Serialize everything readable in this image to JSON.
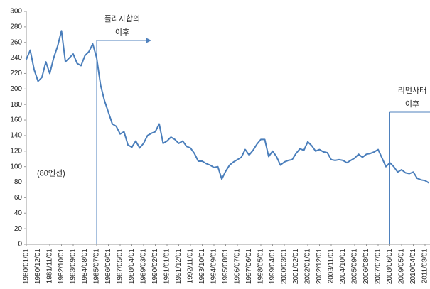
{
  "chart_data": {
    "type": "line",
    "categories": [
      "1980/01/01",
      null,
      null,
      "1980/12/01",
      null,
      null,
      "1981/11/01",
      null,
      null,
      "1982/10/01",
      null,
      null,
      "1983/09/01",
      null,
      null,
      "1984/08/01",
      null,
      null,
      "1985/07/01",
      null,
      null,
      "1986/06/01",
      null,
      null,
      "1987/05/01",
      null,
      null,
      "1988/04/01",
      null,
      null,
      "1989/03/01",
      null,
      null,
      "1990/02/01",
      null,
      null,
      "1991/01/01",
      null,
      null,
      "1991/12/01",
      null,
      null,
      "1992/11/01",
      null,
      null,
      "1993/10/01",
      null,
      null,
      "1994/09/01",
      null,
      null,
      "1995/08/01",
      null,
      null,
      "1996/07/01",
      null,
      null,
      "1997/06/01",
      null,
      null,
      "1998/05/01",
      null,
      null,
      "1999/04/01",
      null,
      null,
      "2000/03/01",
      null,
      null,
      "2001/02/01",
      null,
      null,
      "2002/01/01",
      null,
      null,
      "2002/12/01",
      null,
      null,
      "2003/11/01",
      null,
      null,
      "2004/10/01",
      null,
      null,
      "2005/09/01",
      null,
      null,
      "2006/08/01",
      null,
      null,
      "2007/07/01",
      null,
      null,
      "2008/06/01",
      null,
      null,
      "2009/05/01",
      null,
      null,
      "2010/04/01",
      null,
      null,
      "2011/03/01",
      null
    ],
    "values": [
      238,
      250,
      225,
      210,
      215,
      235,
      220,
      240,
      255,
      275,
      235,
      240,
      245,
      233,
      230,
      243,
      248,
      258,
      240,
      205,
      185,
      170,
      155,
      152,
      142,
      145,
      128,
      125,
      133,
      124,
      130,
      140,
      143,
      145,
      155,
      130,
      133,
      138,
      135,
      130,
      133,
      126,
      124,
      117,
      107,
      107,
      104,
      102,
      99,
      100,
      84,
      94,
      102,
      106,
      109,
      112,
      122,
      115,
      121,
      129,
      135,
      135,
      113,
      120,
      113,
      102,
      106,
      108,
      109,
      117,
      123,
      121,
      132,
      127,
      120,
      122,
      119,
      118,
      109,
      108,
      109,
      108,
      105,
      108,
      111,
      116,
      112,
      116,
      117,
      119,
      122,
      111,
      100,
      105,
      100,
      93,
      96,
      92,
      91,
      93,
      85,
      83,
      82,
      79
    ],
    "color": "#4a7ebb",
    "ylim": [
      0,
      300
    ],
    "yticks": [
      0,
      20,
      40,
      60,
      80,
      100,
      120,
      140,
      160,
      180,
      200,
      220,
      240,
      260,
      280,
      300
    ],
    "reference_line": {
      "value": 80,
      "label": "(80엔선)"
    },
    "annotations": [
      {
        "lines": [
          "플라자합의",
          "이후"
        ],
        "category": 18
      },
      {
        "lines": [
          "리먼사태",
          "이후"
        ],
        "category": 93
      }
    ]
  }
}
